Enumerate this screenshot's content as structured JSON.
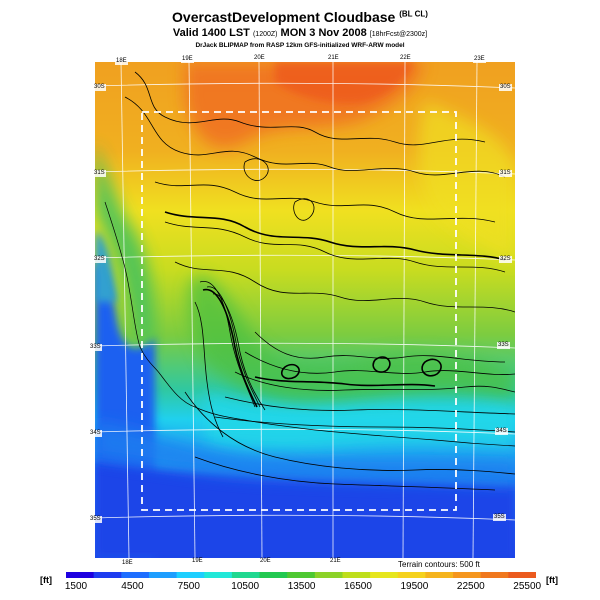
{
  "header": {
    "title": "OvercastDevelopment Cloudbase",
    "title_tag": "(BL CL)",
    "valid_line": "Valid 1400 LST",
    "valid_utc": "(1200Z)",
    "valid_date": "MON 3 Nov 2008",
    "forecast_tag": "[18hrFcst@2300z]",
    "credit": "DrJack BLIPMAP from RASP 12km GFS-initialized WRF-ARW model"
  },
  "map": {
    "lon_labels": [
      "18E",
      "19E",
      "20E",
      "21E",
      "22E",
      "23E"
    ],
    "lon_values": [
      18,
      19,
      20,
      21,
      22,
      23
    ],
    "lat_labels_left": [
      "30S",
      "31S",
      "32S",
      "33S",
      "34S",
      "35S"
    ],
    "lat_labels_right": [
      "30S",
      "31S",
      "32S",
      "33S",
      "34S",
      "35S"
    ],
    "lat_values": [
      30,
      31,
      32,
      33,
      34,
      35
    ],
    "terrain_note": "Terrain contours: 500 ft",
    "colors": {
      "ocean": "#1b44e8",
      "coast_cyan": "#20d0ee",
      "green": "#3cc060",
      "yellowgreen": "#9cd22c",
      "yellow": "#f0e020",
      "orange": "#f0a020",
      "darkorange": "#f07020",
      "contour": "#000000",
      "grid": "#ffffff"
    }
  },
  "colorbar": {
    "unit_left": "[ft]",
    "unit_right": "[ft]",
    "tick_labels": [
      "1500",
      "4500",
      "7500",
      "10500",
      "13500",
      "16500",
      "19500",
      "22500",
      "25500"
    ],
    "tick_values": [
      1500,
      4500,
      7500,
      10500,
      13500,
      16500,
      19500,
      22500,
      25500
    ],
    "range": [
      1500,
      26500
    ],
    "colors": [
      "#1e00e0",
      "#1e3cf0",
      "#1e6eff",
      "#1e9eff",
      "#1ecfff",
      "#21e8d8",
      "#20d890",
      "#22c850",
      "#4ec832",
      "#8cd228",
      "#bede1c",
      "#e6e61e",
      "#f5d21e",
      "#f5b41e",
      "#f5961e",
      "#f0781e",
      "#eb5a1e"
    ]
  }
}
